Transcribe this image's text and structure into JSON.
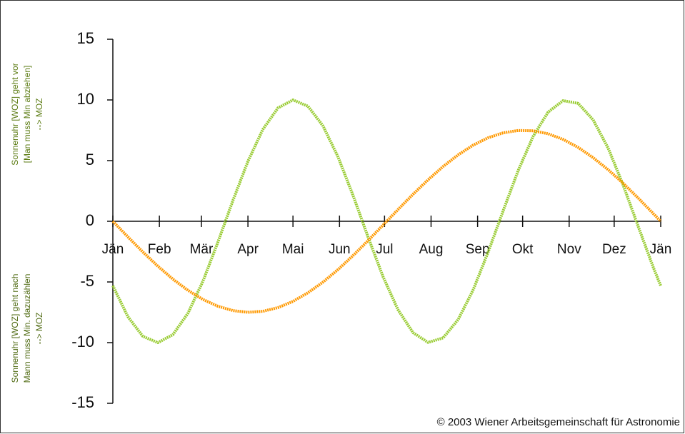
{
  "chart_data": {
    "type": "line",
    "y_label_upper": [
      "Sonnenuhr [WOZ] geht vor",
      "[Man muss Min abziehen]",
      "--> MOZ"
    ],
    "y_label_lower": [
      "Sonnenuhr [WOZ] geht nach",
      "Mann muss Min. dazuzählen",
      "--> MOZ"
    ],
    "credit": "© 2003 Wiener Arbeitsgemeinschaft für Astronomie",
    "x": [
      0,
      10,
      20,
      30,
      40,
      50,
      60,
      70,
      80,
      90,
      100,
      110,
      120,
      130,
      140,
      150,
      160,
      170,
      180,
      190,
      200,
      210,
      220,
      230,
      240,
      250,
      260,
      270,
      280,
      290,
      300,
      310,
      320,
      330,
      340,
      350,
      360,
      365
    ],
    "series": [
      {
        "color": "#99cc33",
        "values": [
          -5.31,
          -7.86,
          -9.48,
          -10.0,
          -9.34,
          -7.58,
          -4.94,
          -1.71,
          1.71,
          4.94,
          7.58,
          9.34,
          10.0,
          9.48,
          7.86,
          5.31,
          2.14,
          -1.29,
          -4.56,
          -7.3,
          -9.18,
          -9.98,
          -9.61,
          -8.11,
          -5.67,
          -2.55,
          0.86,
          4.17,
          7.0,
          9.0,
          9.94,
          9.72,
          8.36,
          6.02,
          2.97,
          -0.43,
          -3.78,
          -5.31
        ]
      },
      {
        "color": "#ff9900",
        "values": [
          0,
          -1.28,
          -2.53,
          -3.7,
          -4.77,
          -5.69,
          -6.44,
          -7.0,
          -7.36,
          -7.5,
          -7.42,
          -7.11,
          -6.6,
          -5.89,
          -5.01,
          -3.98,
          -2.83,
          -1.6,
          -0.32,
          0.97,
          2.23,
          3.42,
          4.51,
          5.47,
          6.27,
          6.88,
          7.29,
          7.48,
          7.46,
          7.21,
          6.75,
          6.09,
          5.24,
          4.25,
          3.13,
          1.91,
          0.64,
          0
        ]
      }
    ],
    "xlim": [
      0,
      365
    ],
    "xticks": [
      {
        "value": 0,
        "label": "Jän"
      },
      {
        "value": 31,
        "label": "Feb"
      },
      {
        "value": 59,
        "label": "Mär"
      },
      {
        "value": 90,
        "label": "Apr"
      },
      {
        "value": 120,
        "label": "Mai"
      },
      {
        "value": 151,
        "label": "Jun"
      },
      {
        "value": 181,
        "label": "Jul"
      },
      {
        "value": 212,
        "label": "Aug"
      },
      {
        "value": 243,
        "label": "Sep"
      },
      {
        "value": 273,
        "label": "Okt"
      },
      {
        "value": 304,
        "label": "Nov"
      },
      {
        "value": 334,
        "label": "Dez"
      },
      {
        "value": 365,
        "label": "Jän"
      }
    ],
    "ylim": [
      -15,
      15
    ],
    "yticks": [
      -15,
      -10,
      -5,
      0,
      5,
      10,
      15
    ]
  }
}
